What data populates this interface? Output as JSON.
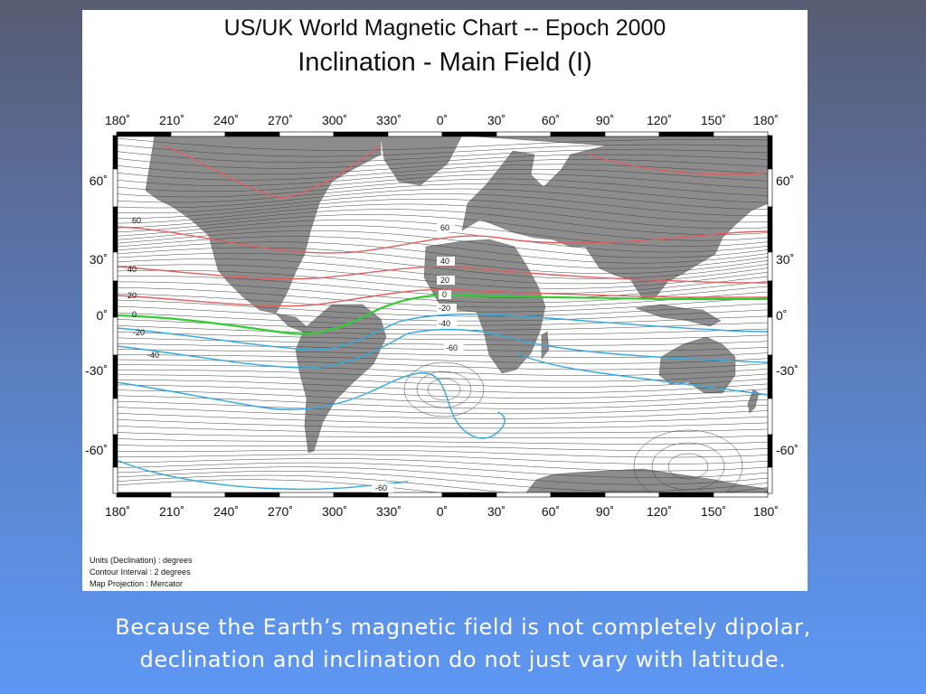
{
  "title_line1": "US/UK World Magnetic Chart  --  Epoch 2000",
  "title_line2": "Inclination - Main Field (I)",
  "lon_ticks": [
    "180˚",
    "210˚",
    "240˚",
    "270˚",
    "300˚",
    "330˚",
    "0˚",
    "30˚",
    "60˚",
    "90˚",
    "120˚",
    "150˚",
    "180˚"
  ],
  "lat_ticks_left": [
    "60˚",
    "30˚",
    "0˚",
    "-30˚",
    "-60˚"
  ],
  "lat_ticks_right": [
    "60˚",
    "30˚",
    "0˚",
    "-30˚",
    "-60˚"
  ],
  "contour_labels": [
    "60",
    "40",
    "20",
    "0",
    "-20",
    "-40",
    "60",
    "40",
    "20",
    "0",
    "-20",
    "-40",
    "-60",
    "-60"
  ],
  "notes": {
    "units": "Units (Declination) : degrees",
    "interval": "Contour Interval : 2 degrees",
    "projection": "Map Projection : Mercator"
  },
  "caption_line1": "Because the Earth’s magnetic field is not completely dipolar,",
  "caption_line2": "declination and inclination do not just vary with latitude.",
  "colors": {
    "positive_major": "#e06060",
    "zero_line": "#33cc33",
    "negative_major": "#33aadd",
    "minor": "#444444",
    "land": "#8c8c8c"
  }
}
